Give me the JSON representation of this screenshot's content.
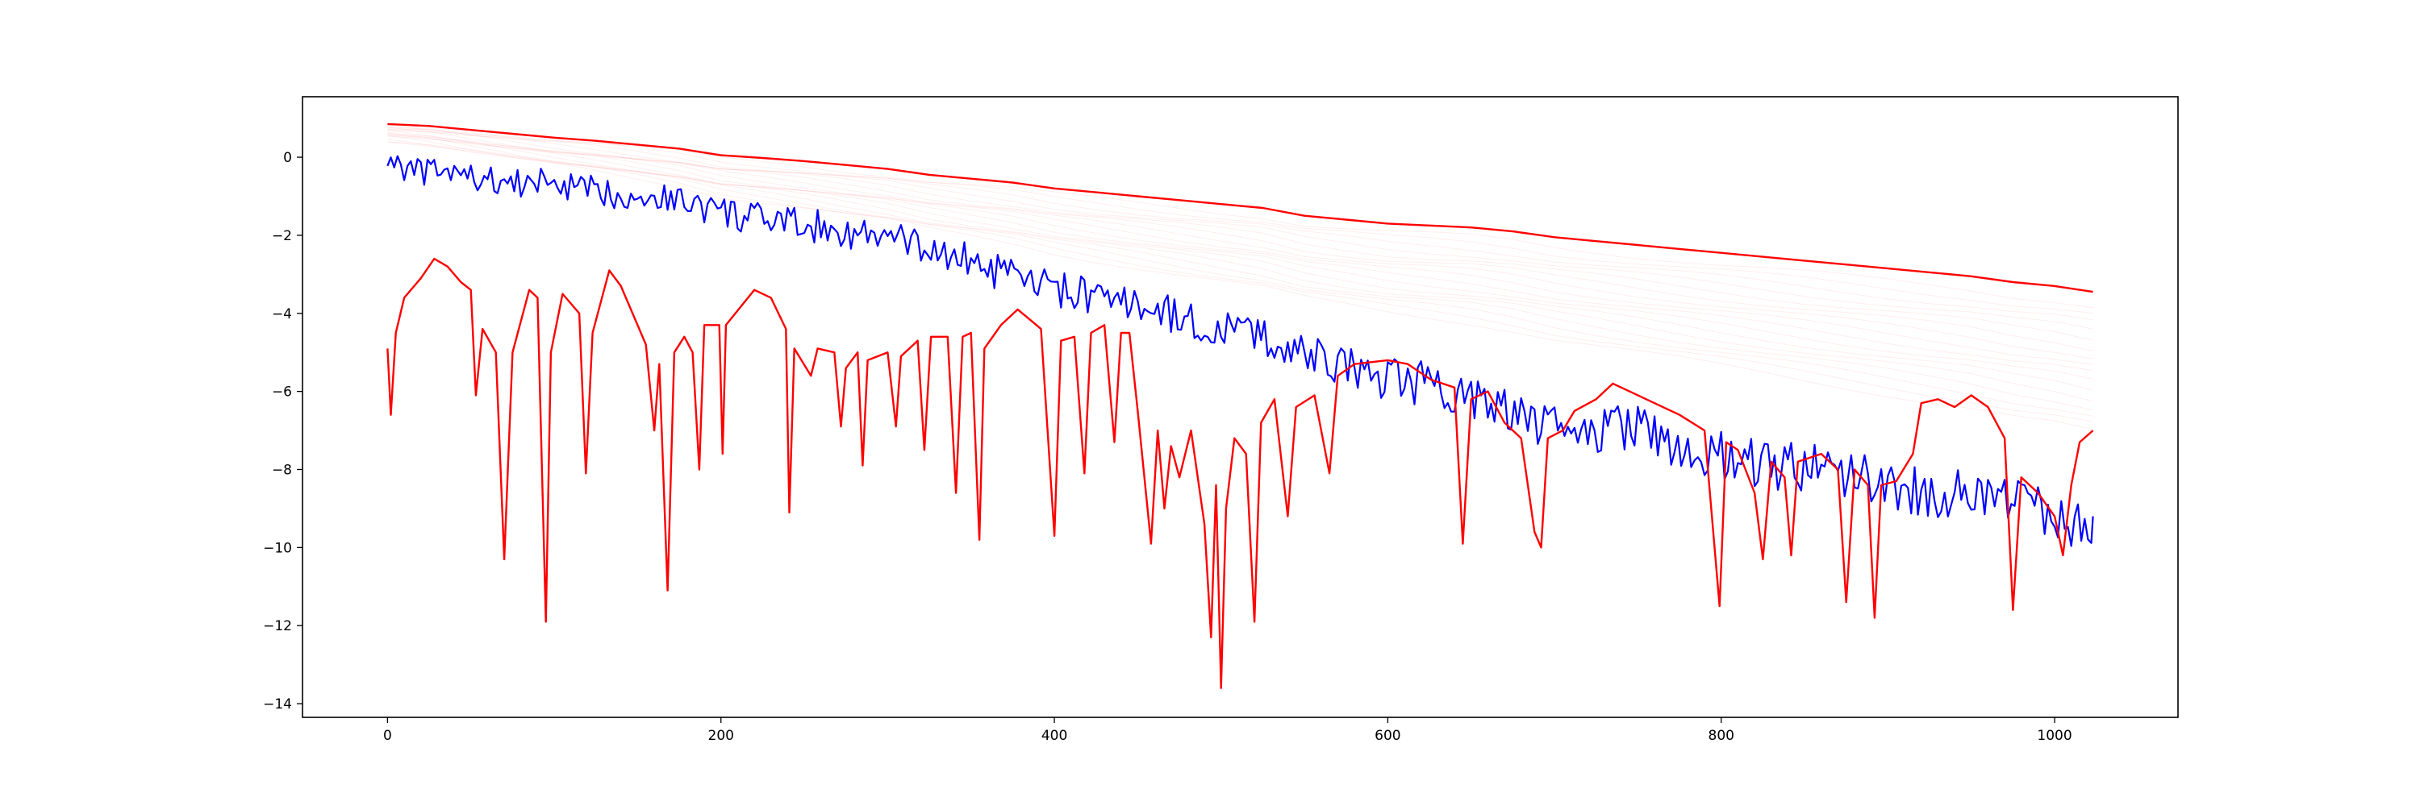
{
  "chart_data": {
    "type": "line",
    "title": "",
    "xlabel": "",
    "ylabel": "",
    "xlim": [
      -51,
      1074
    ],
    "ylim": [
      -14.35,
      1.55
    ],
    "grid": false,
    "legend": "none",
    "xticks": [
      0,
      200,
      400,
      600,
      800,
      1000
    ],
    "xtick_labels": [
      "0",
      "200",
      "400",
      "600",
      "800",
      "1000"
    ],
    "yticks": [
      0,
      -2,
      -4,
      -6,
      -8,
      -10,
      -12,
      -14
    ],
    "ytick_labels": [
      "0",
      "−2",
      "−4",
      "−6",
      "−8",
      "−10",
      "−12",
      "−14"
    ],
    "series": [
      {
        "color": "#ff0000",
        "style": "upper envelope",
        "points": [
          [
            0,
            0.85
          ],
          [
            25,
            0.8
          ],
          [
            50,
            0.7
          ],
          [
            75,
            0.6
          ],
          [
            100,
            0.5
          ],
          [
            125,
            0.42
          ],
          [
            150,
            0.32
          ],
          [
            175,
            0.22
          ],
          [
            200,
            0.05
          ],
          [
            225,
            -0.02
          ],
          [
            250,
            -0.1
          ],
          [
            275,
            -0.2
          ],
          [
            300,
            -0.3
          ],
          [
            325,
            -0.45
          ],
          [
            350,
            -0.55
          ],
          [
            375,
            -0.65
          ],
          [
            400,
            -0.8
          ],
          [
            425,
            -0.9
          ],
          [
            450,
            -1.0
          ],
          [
            475,
            -1.1
          ],
          [
            500,
            -1.2
          ],
          [
            525,
            -1.3
          ],
          [
            550,
            -1.5
          ],
          [
            575,
            -1.6
          ],
          [
            600,
            -1.7
          ],
          [
            625,
            -1.75
          ],
          [
            650,
            -1.8
          ],
          [
            675,
            -1.9
          ],
          [
            700,
            -2.05
          ],
          [
            725,
            -2.15
          ],
          [
            750,
            -2.25
          ],
          [
            775,
            -2.35
          ],
          [
            800,
            -2.45
          ],
          [
            825,
            -2.55
          ],
          [
            850,
            -2.65
          ],
          [
            875,
            -2.75
          ],
          [
            900,
            -2.85
          ],
          [
            925,
            -2.95
          ],
          [
            950,
            -3.05
          ],
          [
            975,
            -3.2
          ],
          [
            1000,
            -3.3
          ],
          [
            1023,
            -3.45
          ]
        ]
      },
      {
        "color": "#0000ff",
        "style": "noisy series",
        "points": [
          [
            0,
            0.0
          ],
          [
            16,
            -0.4
          ],
          [
            32,
            -0.35
          ],
          [
            48,
            -0.5
          ],
          [
            64,
            -0.6
          ],
          [
            80,
            -0.7
          ],
          [
            96,
            -0.6
          ],
          [
            112,
            -0.8
          ],
          [
            128,
            -0.9
          ],
          [
            144,
            -0.95
          ],
          [
            160,
            -1.0
          ],
          [
            176,
            -1.1
          ],
          [
            192,
            -1.3
          ],
          [
            208,
            -1.5
          ],
          [
            224,
            -1.6
          ],
          [
            240,
            -1.7
          ],
          [
            256,
            -1.75
          ],
          [
            272,
            -1.9
          ],
          [
            288,
            -2.0
          ],
          [
            304,
            -2.1
          ],
          [
            320,
            -2.3
          ],
          [
            336,
            -2.5
          ],
          [
            352,
            -2.7
          ],
          [
            368,
            -3.0
          ],
          [
            384,
            -3.2
          ],
          [
            400,
            -3.4
          ],
          [
            416,
            -3.5
          ],
          [
            432,
            -3.7
          ],
          [
            448,
            -3.8
          ],
          [
            464,
            -3.9
          ],
          [
            480,
            -4.2
          ],
          [
            496,
            -4.4
          ],
          [
            512,
            -4.5
          ],
          [
            528,
            -4.6
          ],
          [
            544,
            -5.0
          ],
          [
            560,
            -5.2
          ],
          [
            576,
            -5.3
          ],
          [
            592,
            -5.6
          ],
          [
            608,
            -5.75
          ],
          [
            624,
            -5.8
          ],
          [
            640,
            -6.0
          ],
          [
            656,
            -6.2
          ],
          [
            672,
            -6.5
          ],
          [
            688,
            -6.8
          ],
          [
            704,
            -7.0
          ],
          [
            720,
            -7.1
          ],
          [
            736,
            -6.9
          ],
          [
            752,
            -7.0
          ],
          [
            768,
            -7.3
          ],
          [
            784,
            -7.5
          ],
          [
            800,
            -7.6
          ],
          [
            816,
            -7.8
          ],
          [
            832,
            -8.0
          ],
          [
            848,
            -7.9
          ],
          [
            864,
            -8.0
          ],
          [
            880,
            -8.2
          ],
          [
            896,
            -8.3
          ],
          [
            912,
            -8.5
          ],
          [
            928,
            -8.6
          ],
          [
            944,
            -8.5
          ],
          [
            960,
            -8.7
          ],
          [
            976,
            -8.8
          ],
          [
            992,
            -9.0
          ],
          [
            1008,
            -9.3
          ],
          [
            1023,
            -9.2
          ]
        ]
      },
      {
        "color": "#ff0000",
        "style": "lower oscillating series",
        "points": [
          [
            0,
            -4.9
          ],
          [
            2,
            -6.6
          ],
          [
            5,
            -4.5
          ],
          [
            10,
            -3.6
          ],
          [
            20,
            -3.1
          ],
          [
            28,
            -2.6
          ],
          [
            36,
            -2.8
          ],
          [
            44,
            -3.2
          ],
          [
            50,
            -3.4
          ],
          [
            53,
            -6.1
          ],
          [
            57,
            -4.4
          ],
          [
            65,
            -5.0
          ],
          [
            70,
            -10.3
          ],
          [
            75,
            -5.0
          ],
          [
            85,
            -3.4
          ],
          [
            90,
            -3.6
          ],
          [
            95,
            -11.9
          ],
          [
            98,
            -5.0
          ],
          [
            105,
            -3.5
          ],
          [
            115,
            -4.0
          ],
          [
            119,
            -8.1
          ],
          [
            123,
            -4.5
          ],
          [
            133,
            -2.9
          ],
          [
            140,
            -3.3
          ],
          [
            155,
            -4.8
          ],
          [
            160,
            -7.0
          ],
          [
            163,
            -5.3
          ],
          [
            168,
            -11.1
          ],
          [
            172,
            -5.0
          ],
          [
            178,
            -4.6
          ],
          [
            183,
            -5.0
          ],
          [
            187,
            -8.0
          ],
          [
            190,
            -4.3
          ],
          [
            199,
            -4.3
          ],
          [
            201,
            -7.6
          ],
          [
            203,
            -4.3
          ],
          [
            220,
            -3.4
          ],
          [
            230,
            -3.6
          ],
          [
            239,
            -4.4
          ],
          [
            241,
            -9.1
          ],
          [
            244,
            -4.9
          ],
          [
            254,
            -5.6
          ],
          [
            258,
            -4.9
          ],
          [
            268,
            -5.0
          ],
          [
            272,
            -6.9
          ],
          [
            275,
            -5.4
          ],
          [
            282,
            -5.0
          ],
          [
            285,
            -7.9
          ],
          [
            288,
            -5.2
          ],
          [
            300,
            -5.0
          ],
          [
            305,
            -6.9
          ],
          [
            308,
            -5.1
          ],
          [
            318,
            -4.7
          ],
          [
            322,
            -7.5
          ],
          [
            326,
            -4.6
          ],
          [
            336,
            -4.6
          ],
          [
            341,
            -8.6
          ],
          [
            345,
            -4.6
          ],
          [
            350,
            -4.5
          ],
          [
            355,
            -9.8
          ],
          [
            358,
            -4.9
          ],
          [
            368,
            -4.3
          ],
          [
            378,
            -3.9
          ],
          [
            392,
            -4.4
          ],
          [
            400,
            -9.7
          ],
          [
            404,
            -4.7
          ],
          [
            412,
            -4.6
          ],
          [
            418,
            -8.1
          ],
          [
            422,
            -4.5
          ],
          [
            430,
            -4.3
          ],
          [
            436,
            -7.3
          ],
          [
            440,
            -4.5
          ],
          [
            445,
            -4.5
          ],
          [
            450,
            -6.5
          ],
          [
            458,
            -9.9
          ],
          [
            462,
            -7.0
          ],
          [
            466,
            -9.0
          ],
          [
            470,
            -7.4
          ],
          [
            475,
            -8.2
          ],
          [
            482,
            -7.0
          ],
          [
            490,
            -9.4
          ],
          [
            494,
            -12.3
          ],
          [
            497,
            -8.4
          ],
          [
            500,
            -13.6
          ],
          [
            503,
            -9.0
          ],
          [
            508,
            -7.2
          ],
          [
            515,
            -7.6
          ],
          [
            520,
            -11.9
          ],
          [
            524,
            -6.8
          ],
          [
            532,
            -6.2
          ],
          [
            540,
            -9.2
          ],
          [
            545,
            -6.4
          ],
          [
            556,
            -6.1
          ],
          [
            565,
            -8.1
          ],
          [
            570,
            -5.6
          ],
          [
            580,
            -5.3
          ],
          [
            600,
            -5.2
          ],
          [
            612,
            -5.3
          ],
          [
            626,
            -5.7
          ],
          [
            640,
            -5.9
          ],
          [
            645,
            -9.9
          ],
          [
            650,
            -6.2
          ],
          [
            660,
            -6.0
          ],
          [
            670,
            -6.8
          ],
          [
            680,
            -7.2
          ],
          [
            688,
            -9.6
          ],
          [
            692,
            -10.0
          ],
          [
            696,
            -7.2
          ],
          [
            705,
            -7.0
          ],
          [
            712,
            -6.5
          ],
          [
            725,
            -6.2
          ],
          [
            735,
            -5.8
          ],
          [
            745,
            -6.0
          ],
          [
            760,
            -6.3
          ],
          [
            775,
            -6.6
          ],
          [
            790,
            -7.0
          ],
          [
            799,
            -11.5
          ],
          [
            803,
            -7.3
          ],
          [
            810,
            -7.5
          ],
          [
            820,
            -8.6
          ],
          [
            825,
            -10.3
          ],
          [
            830,
            -7.8
          ],
          [
            838,
            -8.2
          ],
          [
            842,
            -10.2
          ],
          [
            846,
            -7.8
          ],
          [
            860,
            -7.6
          ],
          [
            870,
            -8.0
          ],
          [
            875,
            -11.4
          ],
          [
            880,
            -8.0
          ],
          [
            888,
            -8.4
          ],
          [
            892,
            -11.8
          ],
          [
            896,
            -8.4
          ],
          [
            905,
            -8.3
          ],
          [
            915,
            -7.6
          ],
          [
            920,
            -6.3
          ],
          [
            930,
            -6.2
          ],
          [
            940,
            -6.4
          ],
          [
            950,
            -6.1
          ],
          [
            960,
            -6.4
          ],
          [
            970,
            -7.2
          ],
          [
            975,
            -11.6
          ],
          [
            980,
            -8.2
          ],
          [
            990,
            -8.6
          ],
          [
            1000,
            -9.2
          ],
          [
            1005,
            -10.2
          ],
          [
            1010,
            -8.4
          ],
          [
            1015,
            -7.3
          ],
          [
            1023,
            -7.0
          ]
        ]
      }
    ]
  }
}
